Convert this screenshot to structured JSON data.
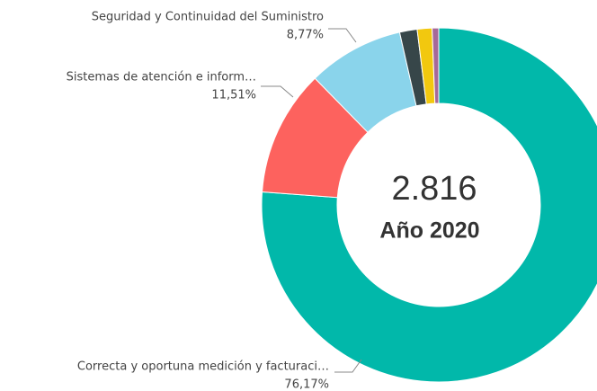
{
  "chart_data": {
    "type": "donut",
    "categories": [
      "Correcta y oportuna medición y facturaci…",
      "Sistemas de atención e inform…",
      "Seguridad y Continuidad del Suministro",
      null,
      null,
      null
    ],
    "values": [
      76.17,
      11.51,
      8.77,
      1.6,
      1.35,
      0.6
    ],
    "value_labels": [
      "76,17%",
      "11,51%",
      "8,77%",
      null,
      null,
      null
    ],
    "colors": [
      "#01b8aa",
      "#fd625e",
      "#8ad4eb",
      "#374649",
      "#f2c80f",
      "#a66999"
    ],
    "center_value": "2.816",
    "center_label": "Año 2020"
  }
}
